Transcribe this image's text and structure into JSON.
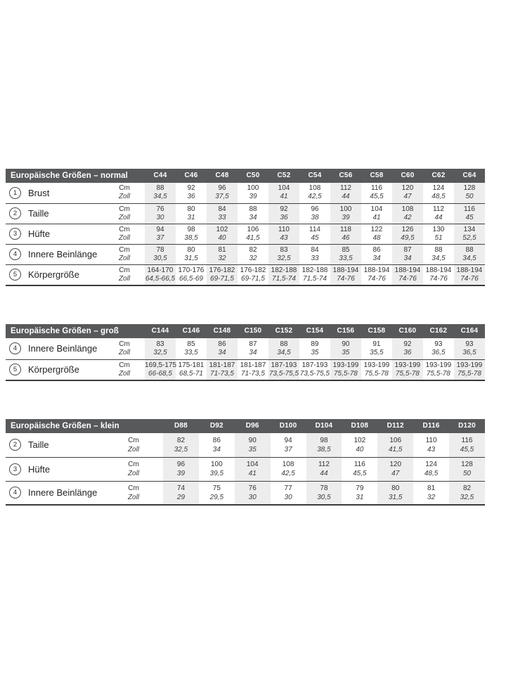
{
  "colors": {
    "header_bg": "#58595b",
    "header_text": "#ffffff",
    "column_stripe": "#ededed",
    "grid_line": "#414143",
    "body_text": "#231f20",
    "page_bg": "#ffffff"
  },
  "unit_labels": {
    "cm": "Cm",
    "zoll": "Zoll"
  },
  "tables": [
    {
      "title": "Europäische Größen – normal",
      "columns": [
        "C44",
        "C46",
        "C48",
        "C50",
        "C52",
        "C54",
        "C56",
        "C58",
        "C60",
        "C62",
        "C64"
      ],
      "rows": [
        {
          "num": "1",
          "label": "Brust",
          "cm": [
            "88",
            "92",
            "96",
            "100",
            "104",
            "108",
            "112",
            "116",
            "120",
            "124",
            "128"
          ],
          "zoll": [
            "34,5",
            "36",
            "37,5",
            "39",
            "41",
            "42,5",
            "44",
            "45,5",
            "47",
            "48,5",
            "50"
          ]
        },
        {
          "num": "2",
          "label": "Taille",
          "cm": [
            "76",
            "80",
            "84",
            "88",
            "92",
            "96",
            "100",
            "104",
            "108",
            "112",
            "116"
          ],
          "zoll": [
            "30",
            "31",
            "33",
            "34",
            "36",
            "38",
            "39",
            "41",
            "42",
            "44",
            "45"
          ]
        },
        {
          "num": "3",
          "label": "Hüfte",
          "cm": [
            "94",
            "98",
            "102",
            "106",
            "110",
            "114",
            "118",
            "122",
            "126",
            "130",
            "134"
          ],
          "zoll": [
            "37",
            "38,5",
            "40",
            "41,5",
            "43",
            "45",
            "46",
            "48",
            "49,5",
            "51",
            "52,5"
          ]
        },
        {
          "num": "4",
          "label": "Innere Beinlänge",
          "cm": [
            "78",
            "80",
            "81",
            "82",
            "83",
            "84",
            "85",
            "86",
            "87",
            "88",
            "88"
          ],
          "zoll": [
            "30,5",
            "31,5",
            "32",
            "32",
            "32,5",
            "33",
            "33,5",
            "34",
            "34",
            "34,5",
            "34,5"
          ]
        },
        {
          "num": "5",
          "label": "Körpergröße",
          "cm": [
            "164-170",
            "170-176",
            "176-182",
            "176-182",
            "182-188",
            "182-188",
            "188-194",
            "188-194",
            "188-194",
            "188-194",
            "188-194"
          ],
          "zoll": [
            "64,5-66,5",
            "66,5-69",
            "69-71,5",
            "69-71,5",
            "71,5-74",
            "71,5-74",
            "74-76",
            "74-76",
            "74-76",
            "74-76",
            "74-76"
          ]
        }
      ]
    },
    {
      "title": "Europäische Größen – groß",
      "columns": [
        "C144",
        "C146",
        "C148",
        "C150",
        "C152",
        "C154",
        "C156",
        "C158",
        "C160",
        "C162",
        "C164"
      ],
      "rows": [
        {
          "num": "4",
          "label": "Innere Beinlänge",
          "cm": [
            "83",
            "85",
            "86",
            "87",
            "88",
            "89",
            "90",
            "91",
            "92",
            "93",
            "93"
          ],
          "zoll": [
            "32,5",
            "33,5",
            "34",
            "34",
            "34,5",
            "35",
            "35",
            "35,5",
            "36",
            "36,5",
            "36,5"
          ]
        },
        {
          "num": "5",
          "label": "Körpergröße",
          "cm": [
            "169,5-175",
            "175-181",
            "181-187",
            "181-187",
            "187-193",
            "187-193",
            "193-199",
            "193-199",
            "193-199",
            "193-199",
            "193-199"
          ],
          "zoll": [
            "66-68,5",
            "68,5-71",
            "71-73,5",
            "71-73,5",
            "73,5-75,5",
            "73,5-75,5",
            "75,5-78",
            "75,5-78",
            "75,5-78",
            "75,5-78",
            "75,5-78"
          ]
        }
      ]
    },
    {
      "title": "Europäische Größen – klein",
      "columns": [
        "D88",
        "D92",
        "D96",
        "D100",
        "D104",
        "D108",
        "D112",
        "D116",
        "D120"
      ],
      "rows": [
        {
          "num": "2",
          "label": "Taille",
          "cm": [
            "82",
            "86",
            "90",
            "94",
            "98",
            "102",
            "106",
            "110",
            "116"
          ],
          "zoll": [
            "32,5",
            "34",
            "35",
            "37",
            "38,5",
            "40",
            "41,5",
            "43",
            "45,5"
          ]
        },
        {
          "num": "3",
          "label": "Hüfte",
          "cm": [
            "96",
            "100",
            "104",
            "108",
            "112",
            "116",
            "120",
            "124",
            "128"
          ],
          "zoll": [
            "39",
            "39,5",
            "41",
            "42,5",
            "44",
            "45,5",
            "47",
            "48,5",
            "50"
          ]
        },
        {
          "num": "4",
          "label": "Innere Beinlänge",
          "cm": [
            "74",
            "75",
            "76",
            "77",
            "78",
            "79",
            "80",
            "81",
            "82"
          ],
          "zoll": [
            "29",
            "29,5",
            "30",
            "30",
            "30,5",
            "31",
            "31,5",
            "32",
            "32,5"
          ]
        }
      ]
    }
  ]
}
